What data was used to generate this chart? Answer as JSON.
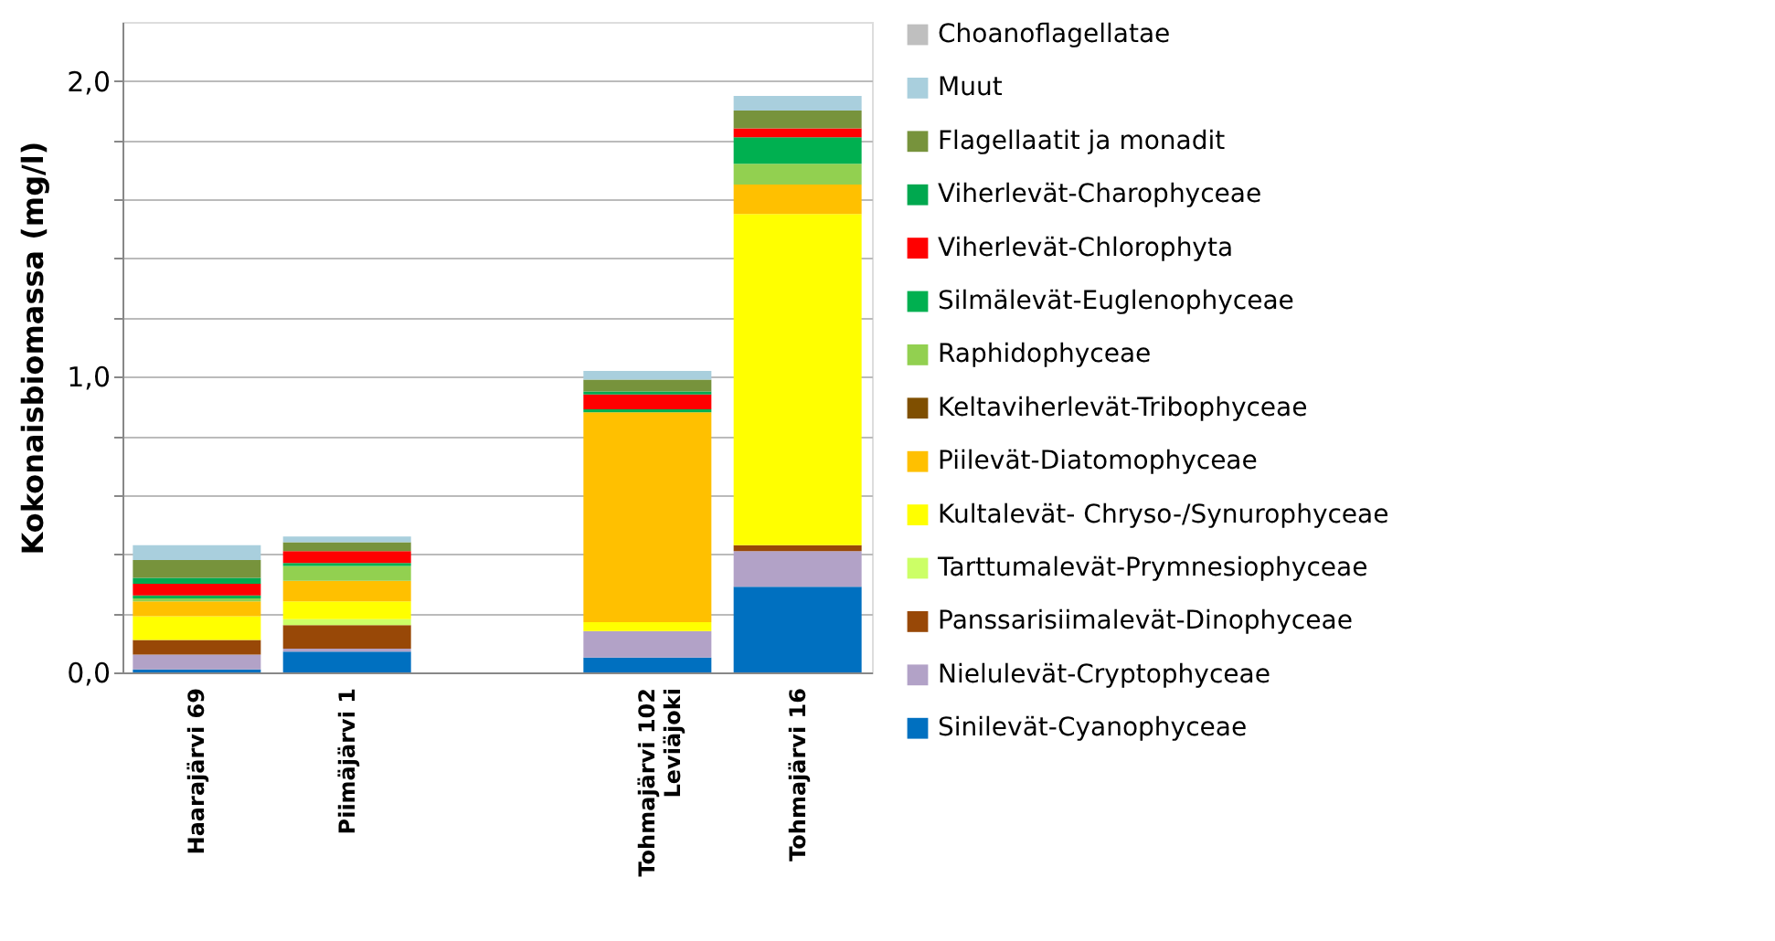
{
  "chart_data": {
    "type": "bar",
    "stacked": true,
    "ylabel": "Kokonaisbiomassa (mg/l)",
    "categories": [
      "Haarajärvi 69",
      "Piimäjärvi 1",
      null,
      "Tohmajärvi 102\nLeviäjoki",
      "Tohmajärvi 16"
    ],
    "ylim": [
      0,
      2.2
    ],
    "yticks": [
      {
        "value": 0,
        "label": "0,0"
      },
      {
        "value": 0.2,
        "label": null
      },
      {
        "value": 0.4,
        "label": null
      },
      {
        "value": 0.6,
        "label": null
      },
      {
        "value": 0.8,
        "label": null
      },
      {
        "value": 1.0,
        "label": "1,0"
      },
      {
        "value": 1.2,
        "label": null
      },
      {
        "value": 1.4,
        "label": null
      },
      {
        "value": 1.6,
        "label": null
      },
      {
        "value": 1.8,
        "label": null
      },
      {
        "value": 2.0,
        "label": "2,0"
      }
    ],
    "grid": "y",
    "legend": "right",
    "series": [
      {
        "name": "Sinilevät-Cyanophyceae",
        "color": "#0070c0",
        "values": [
          0.01,
          0.07,
          null,
          0.05,
          0.29
        ]
      },
      {
        "name": "Nielulevät-Cryptophyceae",
        "color": "#b2a2c7",
        "values": [
          0.05,
          0.01,
          null,
          0.09,
          0.12
        ]
      },
      {
        "name": "Panssarisiimalevät-Dinophyceae",
        "color": "#984807",
        "values": [
          0.05,
          0.08,
          null,
          null,
          0.02
        ]
      },
      {
        "name": "Tarttumalevät-Prymnesiophyceae",
        "color": "#ccff66",
        "values": [
          null,
          0.02,
          null,
          null,
          null
        ]
      },
      {
        "name": "Kultalevät- Chryso-/Synurophyceae",
        "color": "#ffff00",
        "values": [
          0.08,
          0.06,
          null,
          0.03,
          1.12
        ]
      },
      {
        "name": "Piilevät-Diatomophyceae",
        "color": "#ffc000",
        "values": [
          0.05,
          0.07,
          null,
          0.71,
          0.1
        ]
      },
      {
        "name": "Keltaviherlevät-Tribophyceae",
        "color": "#7f4f00",
        "values": [
          null,
          null,
          null,
          null,
          null
        ]
      },
      {
        "name": "Raphidophyceae",
        "color": "#92d050",
        "values": [
          0.01,
          0.05,
          null,
          null,
          0.07
        ]
      },
      {
        "name": "Silmälevät-Euglenophyceae",
        "color": "#00b050",
        "values": [
          0.01,
          0.01,
          null,
          0.01,
          0.09
        ]
      },
      {
        "name": "Viherlevät-Chlorophyta",
        "color": "#ff0000",
        "values": [
          0.04,
          0.04,
          null,
          0.05,
          0.03
        ]
      },
      {
        "name": "Viherlevät-Charophyceae",
        "color": "#00a84f",
        "values": [
          0.02,
          null,
          null,
          0.01,
          null
        ]
      },
      {
        "name": "Flagellaatit ja monadit",
        "color": "#77933c",
        "values": [
          0.06,
          0.03,
          null,
          0.04,
          0.06
        ]
      },
      {
        "name": "Muut",
        "color": "#a9cfdd",
        "values": [
          0.05,
          0.02,
          null,
          0.03,
          0.05
        ]
      },
      {
        "name": "Choanoflagellatae",
        "color": "#bfbfbf",
        "values": [
          null,
          null,
          null,
          null,
          null
        ]
      }
    ]
  }
}
